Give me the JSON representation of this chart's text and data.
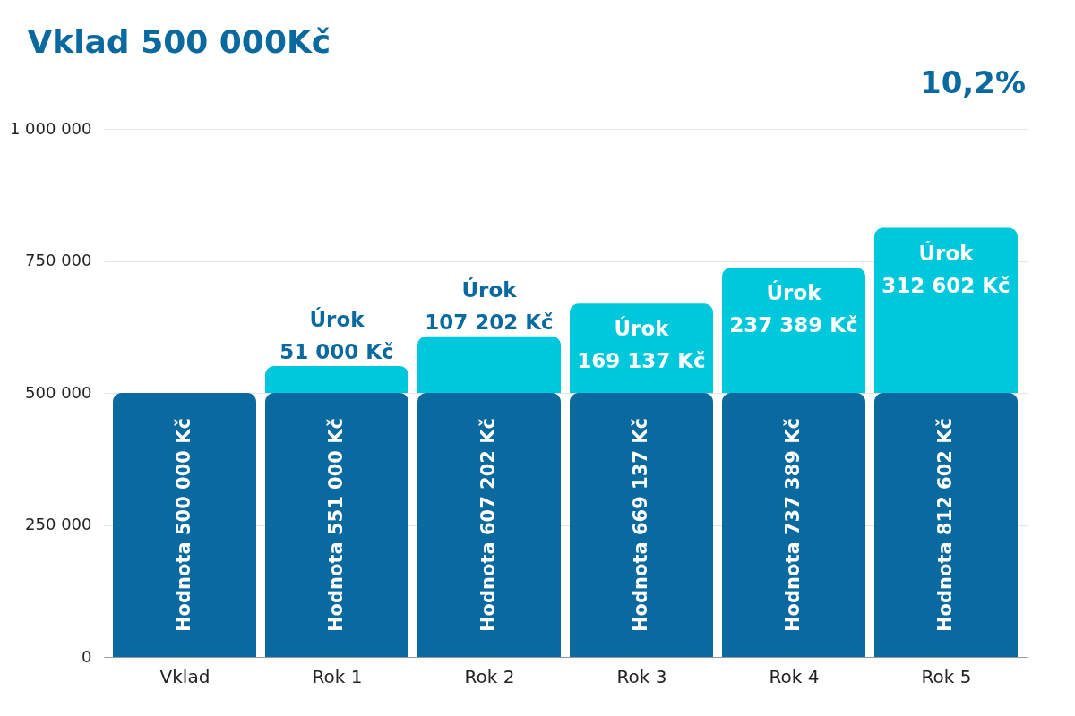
{
  "chart_data": {
    "type": "bar",
    "title": "Vklad 500 000Kč",
    "stacked": true,
    "categories": [
      "Vklad",
      "Rok 1",
      "Rok 2",
      "Rok 3",
      "Rok 4",
      "Rok 5"
    ],
    "series": [
      {
        "color": "#0a6aa0",
        "values": [
          500000,
          500000,
          500000,
          500000,
          500000,
          500000
        ]
      },
      {
        "color": "#00c8dc",
        "values": [
          null,
          51000,
          107202,
          169137,
          237389,
          312602
        ],
        "value_labels": [
          null,
          "Úrok\n51 000 Kč",
          "Úrok\n107 202 Kč",
          "Úrok\n169 137 Kč",
          "Úrok\n237 389 Kč",
          "Úrok\n312 602 Kč"
        ]
      }
    ],
    "totals": [
      "Hodnota 500 000 Kč",
      "Hodnota 551 000 Kč",
      "Hodnota 607 202 Kč",
      "Hodnota 669 137 Kč",
      "Hodnota 737 389 Kč",
      "Hodnota 812 602 Kč"
    ],
    "ylim": [
      0,
      1000000
    ],
    "yticks": [
      {
        "value": 0,
        "label": "0"
      },
      {
        "value": 250000,
        "label": "250 000"
      },
      {
        "value": 500000,
        "label": "500 000"
      },
      {
        "value": 750000,
        "label": "750 000"
      },
      {
        "value": 1000000,
        "label": "1 000 000"
      }
    ],
    "grid": "y",
    "annotations": [
      "10,2%"
    ]
  }
}
